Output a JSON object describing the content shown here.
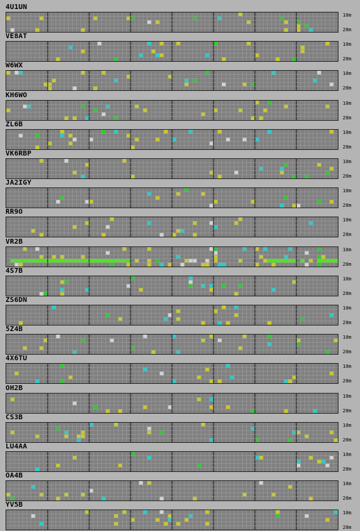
{
  "bands": {
    "top": "10m",
    "bottom": "20m"
  },
  "colors": {
    "background": "#b4b4b4",
    "cell": "#808080",
    "grid_line": "#9c9c9c",
    "hour_line": "#2a2a2a",
    "yellow": "#c8c832",
    "green": "#32c832",
    "cyan": "#32c8c8",
    "white": "#d2d2d2",
    "bright_green": "#50e61e"
  },
  "stations": [
    {
      "callsign": "4U1UN"
    },
    {
      "callsign": "VE8AT"
    },
    {
      "callsign": "W6WX"
    },
    {
      "callsign": "KH6WO"
    },
    {
      "callsign": "ZL6B"
    },
    {
      "callsign": "VK6RBP"
    },
    {
      "callsign": "JA2IGY"
    },
    {
      "callsign": "RR9O"
    },
    {
      "callsign": "VR2B"
    },
    {
      "callsign": "4S7B"
    },
    {
      "callsign": "ZS6DN"
    },
    {
      "callsign": "5Z4B"
    },
    {
      "callsign": "4X6TU"
    },
    {
      "callsign": "OH2B"
    },
    {
      "callsign": "CS3B"
    },
    {
      "callsign": "LU4AA"
    },
    {
      "callsign": "OA4B"
    },
    {
      "callsign": "YV5B"
    }
  ]
}
